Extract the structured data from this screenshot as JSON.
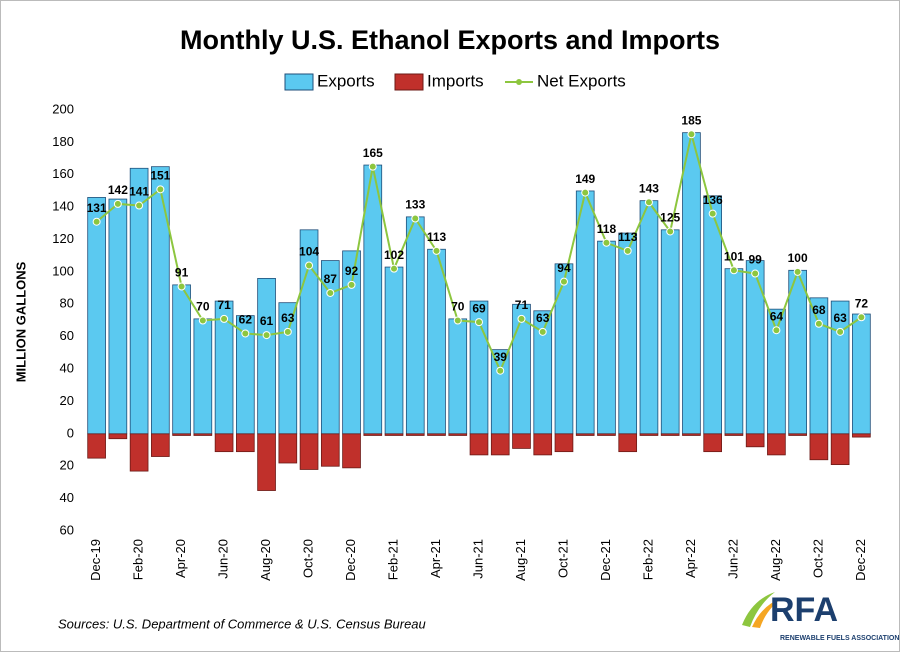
{
  "chart_data": {
    "type": "bar",
    "title": "Monthly U.S. Ethanol Exports and Imports",
    "y_label": "MILLION GALLONS",
    "source": "Sources: U.S. Department of Commerce & U.S. Census Bureau",
    "logo": {
      "name": "RFA",
      "subtitle": "RENEWABLE FUELS ASSOCIATION"
    },
    "categories": [
      "Dec-19",
      null,
      "Feb-20",
      null,
      "Apr-20",
      null,
      "Jun-20",
      null,
      "Aug-20",
      null,
      "Oct-20",
      null,
      "Dec-20",
      null,
      "Feb-21",
      null,
      "Apr-21",
      null,
      "Jun-21",
      null,
      "Aug-21",
      null,
      "Oct-21",
      null,
      "Dec-21",
      null,
      "Feb-22",
      null,
      "Apr-22",
      null,
      "Jun-22",
      null,
      "Aug-22",
      null,
      "Oct-22",
      null,
      "Dec-22"
    ],
    "series": [
      {
        "name": "Exports",
        "color": "#5bc9f0",
        "values": [
          146,
          145,
          164,
          165,
          92,
          71,
          82,
          73,
          96,
          81,
          126,
          107,
          113,
          166,
          103,
          134,
          114,
          71,
          82,
          52,
          80,
          76,
          105,
          150,
          119,
          124,
          144,
          126,
          186,
          147,
          102,
          107,
          77,
          101,
          84,
          82,
          74
        ]
      },
      {
        "name": "Imports",
        "color": "#c0302b",
        "values": [
          -15,
          -3,
          -23,
          -14,
          -1,
          -1,
          -11,
          -11,
          -35,
          -18,
          -22,
          -20,
          -21,
          -1,
          -1,
          -1,
          -1,
          -1,
          -13,
          -13,
          -9,
          -13,
          -11,
          -1,
          -1,
          -11,
          -1,
          -1,
          -1,
          -11,
          -1,
          -8,
          -13,
          -1,
          -16,
          -19,
          -2
        ]
      },
      {
        "name": "Net Exports",
        "color": "#8dc63f",
        "values": [
          131,
          142,
          141,
          151,
          91,
          70,
          71,
          62,
          61,
          63,
          104,
          87,
          92,
          165,
          102,
          133,
          113,
          70,
          69,
          39,
          71,
          63,
          94,
          149,
          118,
          113,
          143,
          125,
          185,
          136,
          101,
          99,
          64,
          100,
          68,
          63,
          72
        ]
      }
    ],
    "ylim": [
      -60,
      200
    ],
    "yticks": [
      {
        "value": -60,
        "label": "60"
      },
      {
        "value": -40,
        "label": "40"
      },
      {
        "value": -20,
        "label": "20"
      },
      0,
      20,
      40,
      60,
      80,
      100,
      120,
      140,
      160,
      180,
      200
    ],
    "grid": false,
    "legend": "top"
  }
}
